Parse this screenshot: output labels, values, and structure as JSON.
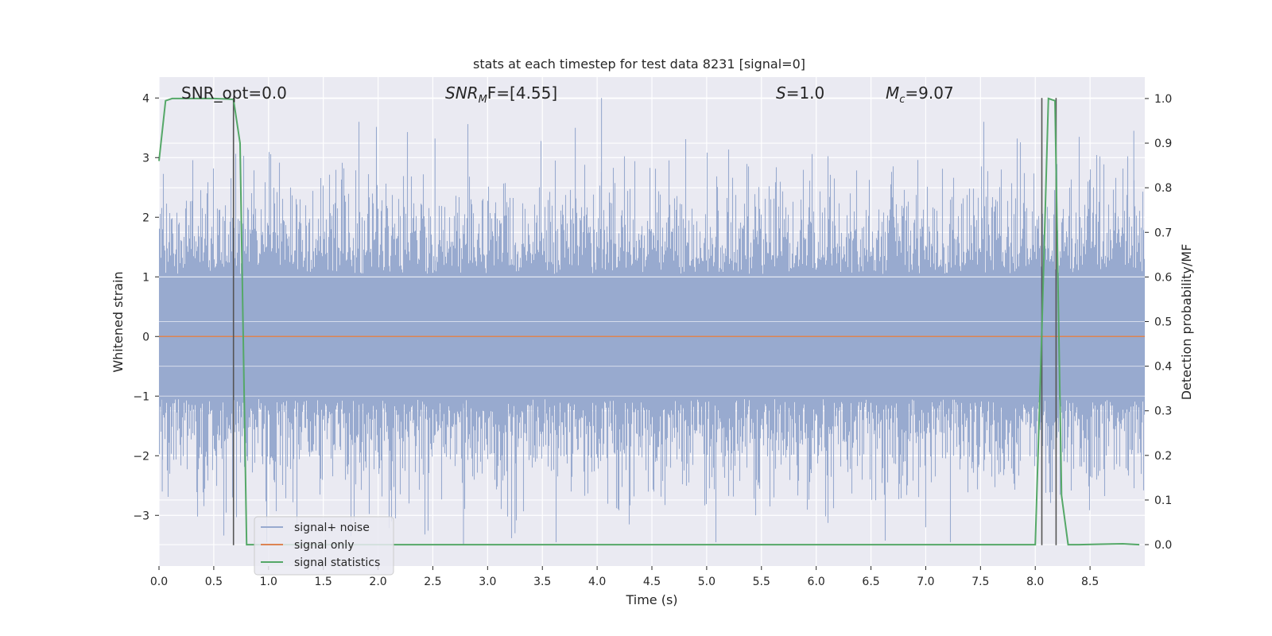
{
  "chart_data": {
    "type": "line",
    "title": "stats at each timestep for test data 8231 [signal=0]",
    "xlabel": "Time (s)",
    "ylabel": "Whitened strain",
    "y2label": "Detection probability/MF",
    "xlim": [
      0.0,
      9.0
    ],
    "ylim": [
      -3.85,
      4.35
    ],
    "y2lim": [
      -0.048,
      1.048
    ],
    "xticks": [
      "0.0",
      "0.5",
      "1.0",
      "1.5",
      "2.0",
      "2.5",
      "3.0",
      "3.5",
      "4.0",
      "4.5",
      "5.0",
      "5.5",
      "6.0",
      "6.5",
      "7.0",
      "7.5",
      "8.0",
      "8.5"
    ],
    "yticks": [
      "4",
      "3",
      "2",
      "1",
      "0",
      "−1",
      "−2",
      "−3"
    ],
    "y2ticks": [
      "1.0",
      "0.9",
      "0.8",
      "0.7",
      "0.6",
      "0.5",
      "0.4",
      "0.3",
      "0.2",
      "0.1",
      "0.0"
    ],
    "grid": true,
    "legend_position": "lower-left",
    "annotations": {
      "snr_opt": "SNR_opt=0.0",
      "snr_mf_sym": "SNR",
      "snr_mf_sub": "M",
      "snr_mf_rest": "F=[4.55]",
      "s_sym": "S",
      "s_rest": "=1.0",
      "mc_sym": "M",
      "mc_sub": "c",
      "mc_rest": "=9.07"
    },
    "series": [
      {
        "name": "signal+ noise",
        "color": "#98aacf",
        "style": "dense noise, amplitude roughly ±2.5, peaks near 4.0 at t≈4.04 and near −3.5 at t≈2.78"
      },
      {
        "name": "signal only",
        "color": "#dd8452",
        "x": [
          0.0,
          9.0
        ],
        "y": [
          0.0,
          0.0
        ]
      },
      {
        "name": "signal statistics",
        "color": "#55a868",
        "axis": "right",
        "x": [
          0.0,
          0.06,
          0.12,
          0.18,
          0.3,
          0.5,
          0.62,
          0.68,
          0.74,
          0.8,
          1.0,
          2.0,
          3.0,
          4.0,
          5.0,
          6.0,
          7.0,
          7.6,
          8.0,
          8.06,
          8.12,
          8.18,
          8.24,
          8.3,
          8.4,
          8.6,
          8.8,
          8.95
        ],
        "y": [
          0.86,
          0.995,
          1.0,
          1.0,
          1.0,
          1.0,
          0.999,
          0.998,
          0.9,
          0.0,
          0.0,
          0.0,
          0.0,
          0.0,
          0.0,
          0.0,
          0.0,
          0.0,
          0.0,
          0.48,
          1.0,
          0.995,
          0.11,
          0.0,
          0.0,
          0.001,
          0.002,
          0.0
        ]
      }
    ],
    "vlines": {
      "color": "#555555",
      "x": [
        0.68,
        8.06,
        8.19
      ],
      "ymin": -3.5,
      "ymax": 4.0
    }
  }
}
